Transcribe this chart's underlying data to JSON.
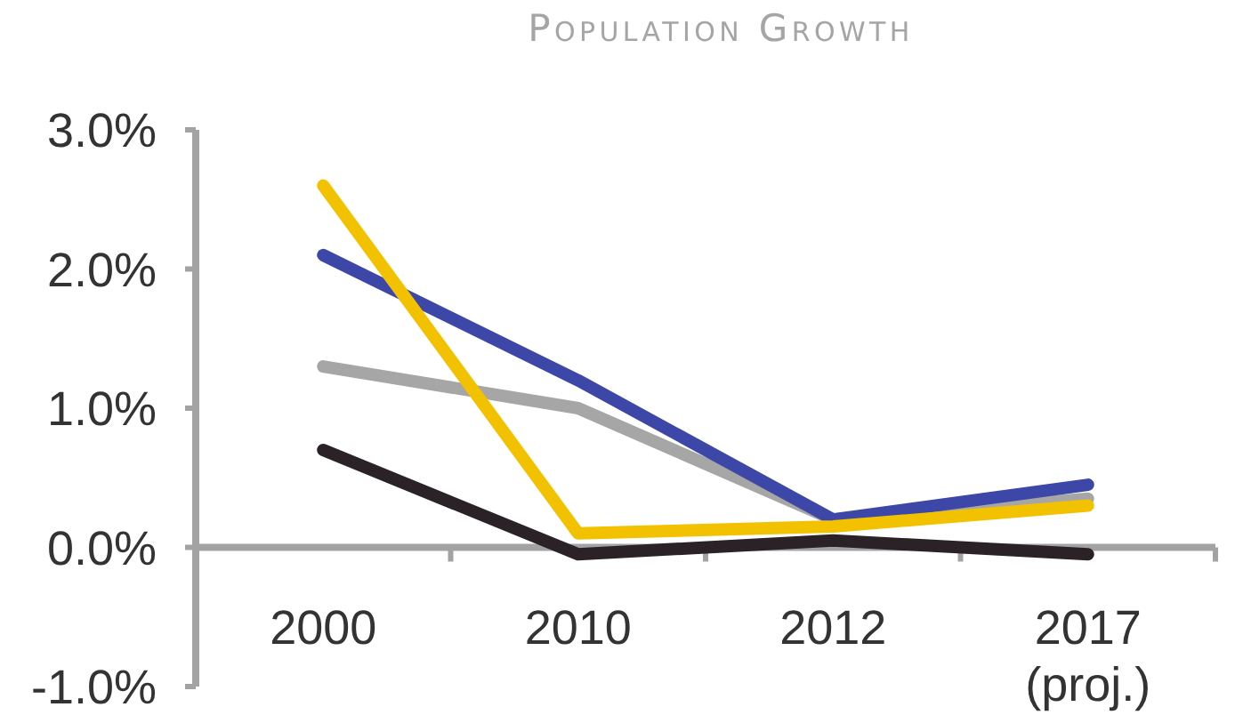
{
  "chart_data": {
    "type": "line",
    "title": "Population Growth",
    "categories": [
      "2000",
      "2010",
      "2012",
      "2017 (proj.)"
    ],
    "series": [
      {
        "color": "#a6a6a6",
        "values": [
          1.3,
          1.0,
          0.2,
          0.35
        ]
      },
      {
        "color": "#3d47a8",
        "values": [
          2.1,
          1.2,
          0.2,
          0.45
        ]
      },
      {
        "color": "#2a2226",
        "values": [
          0.7,
          -0.05,
          0.05,
          -0.05
        ]
      },
      {
        "color": "#f2c200",
        "values": [
          2.6,
          0.1,
          0.15,
          0.3
        ]
      }
    ],
    "ylim": [
      -1,
      3
    ],
    "yticks": [
      {
        "value": -1,
        "label": "-1.0%"
      },
      {
        "value": 0,
        "label": "0.0%"
      },
      {
        "value": 1,
        "label": "1.0%"
      },
      {
        "value": 2,
        "label": "2.0%"
      },
      {
        "value": 3,
        "label": "3.0%"
      }
    ]
  }
}
